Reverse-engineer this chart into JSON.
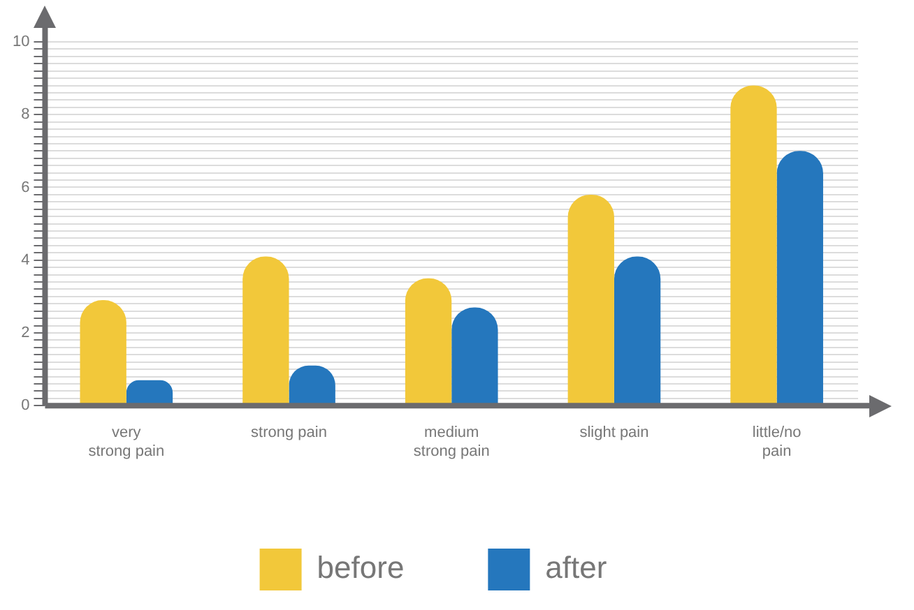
{
  "chart_data": {
    "type": "bar",
    "categories": [
      "very\nstrong pain",
      "strong pain",
      "medium\nstrong pain",
      "slight pain",
      "little/no\npain"
    ],
    "series": [
      {
        "name": "before",
        "color": "#f2c83a",
        "values": [
          2.9,
          4.1,
          3.5,
          5.8,
          8.8
        ]
      },
      {
        "name": "after",
        "color": "#2577bd",
        "values": [
          0.7,
          1.1,
          2.7,
          4.1,
          7.0
        ]
      }
    ],
    "ylim": [
      0,
      10
    ],
    "yticks": [
      0,
      {
        "value": 0.2,
        "label": null
      },
      {
        "value": 0.4,
        "label": null
      },
      {
        "value": 0.6,
        "label": null
      },
      {
        "value": 0.8,
        "label": null
      },
      {
        "value": 1,
        "label": null
      },
      {
        "value": 1.2,
        "label": null
      },
      {
        "value": 1.4,
        "label": null
      },
      {
        "value": 1.6,
        "label": null
      },
      {
        "value": 1.8,
        "label": null
      },
      2,
      {
        "value": 2.2,
        "label": null
      },
      {
        "value": 2.4,
        "label": null
      },
      {
        "value": 2.6,
        "label": null
      },
      {
        "value": 2.8,
        "label": null
      },
      {
        "value": 3,
        "label": null
      },
      {
        "value": 3.2,
        "label": null
      },
      {
        "value": 3.4,
        "label": null
      },
      {
        "value": 3.6,
        "label": null
      },
      {
        "value": 3.8,
        "label": null
      },
      4,
      {
        "value": 4.2,
        "label": null
      },
      {
        "value": 4.4,
        "label": null
      },
      {
        "value": 4.6,
        "label": null
      },
      {
        "value": 4.8,
        "label": null
      },
      {
        "value": 5,
        "label": null
      },
      {
        "value": 5.2,
        "label": null
      },
      {
        "value": 5.4,
        "label": null
      },
      {
        "value": 5.6,
        "label": null
      },
      {
        "value": 5.8,
        "label": null
      },
      6,
      {
        "value": 6.2,
        "label": null
      },
      {
        "value": 6.4,
        "label": null
      },
      {
        "value": 6.6,
        "label": null
      },
      {
        "value": 6.8,
        "label": null
      },
      {
        "value": 7,
        "label": null
      },
      {
        "value": 7.2,
        "label": null
      },
      {
        "value": 7.4,
        "label": null
      },
      {
        "value": 7.6,
        "label": null
      },
      {
        "value": 7.8,
        "label": null
      },
      8,
      {
        "value": 8.2,
        "label": null
      },
      {
        "value": 8.4,
        "label": null
      },
      {
        "value": 8.6,
        "label": null
      },
      {
        "value": 8.8,
        "label": null
      },
      {
        "value": 9,
        "label": null
      },
      {
        "value": 9.2,
        "label": null
      },
      {
        "value": 9.4,
        "label": null
      },
      {
        "value": 9.6,
        "label": null
      },
      {
        "value": 9.8,
        "label": null
      },
      10
    ],
    "grid": "y",
    "legend": "bottom"
  }
}
